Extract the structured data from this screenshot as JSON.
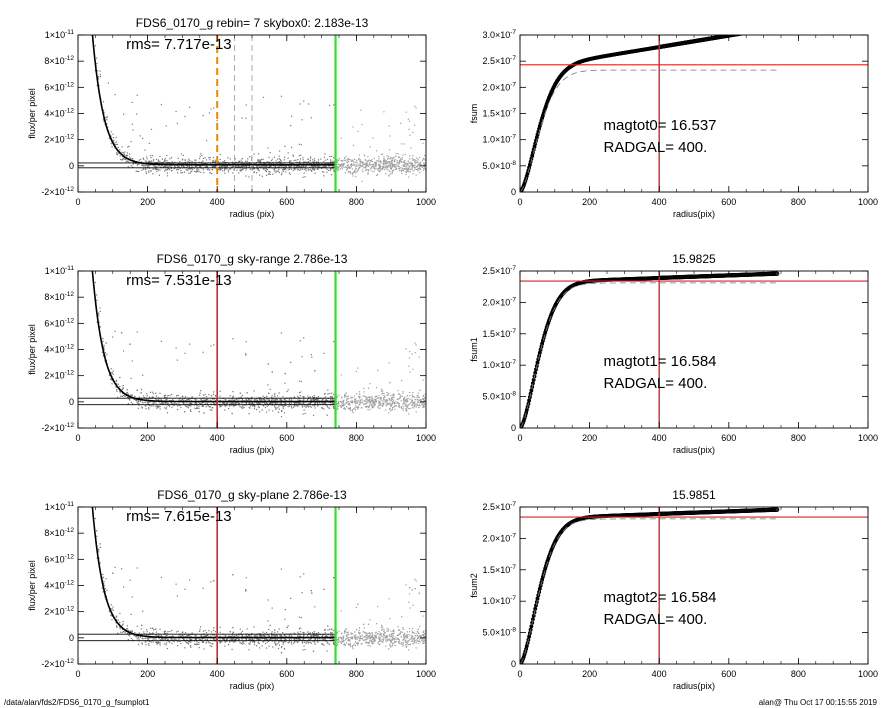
{
  "footer": {
    "left": "/data/alan/fds2/FDS6_0170_g_fsumplot1",
    "right": "alan@  Thu Oct 17 00:15:55 2019"
  },
  "colors": {
    "red": "#dd2222",
    "green": "#33dd33",
    "orange": "#ee8800",
    "points": "#a0a0a0",
    "profile": "#000000"
  },
  "chart_data": [
    {
      "type": "scatter",
      "title": "FDS6_0170_g rebin= 7    skybox0:  2.183e-13",
      "annotation": "rms= 7.717e-13",
      "xlabel": "radius (pix)",
      "ylabel": "flux/per pixel",
      "xlim": [
        0,
        1000
      ],
      "ylim": [
        -2e-12,
        1e-11
      ],
      "xticks": [
        {
          "v": 0,
          "label": "0"
        },
        {
          "v": 200,
          "label": "200"
        },
        {
          "v": 400,
          "label": "400"
        },
        {
          "v": 600,
          "label": "600"
        },
        {
          "v": 800,
          "label": "800"
        },
        {
          "v": 1000,
          "label": "1000"
        }
      ],
      "yticks": [
        {
          "v": -2e-12,
          "base": "-2×10",
          "exp": "-12"
        },
        {
          "v": 0,
          "base": "0",
          "exp": ""
        },
        {
          "v": 2e-12,
          "base": "2×10",
          "exp": "-12"
        },
        {
          "v": 4e-12,
          "base": "4×10",
          "exp": "-12"
        },
        {
          "v": 6e-12,
          "base": "6×10",
          "exp": "-12"
        },
        {
          "v": 8e-12,
          "base": "8×10",
          "exp": "-12"
        },
        {
          "v": 1e-11,
          "base": "1×10",
          "exp": "-11"
        }
      ],
      "profile": {
        "amp": 3.5e-11,
        "scale": 33,
        "offset": 8e-14
      },
      "hlines": [
        2.2e-13,
        -1.5e-13
      ],
      "vlines": [
        {
          "x": 400,
          "color": "#ee8800",
          "style": "dashed-thick"
        },
        {
          "x": 450,
          "color": "#999999",
          "style": "dashed"
        },
        {
          "x": 500,
          "color": "#999999",
          "style": "dashed"
        },
        {
          "x": 740,
          "color": "#33dd33",
          "style": "solid"
        }
      ]
    },
    {
      "type": "line",
      "title": "",
      "xlabel": "radius(pix)",
      "ylabel": "fsum",
      "xlim": [
        0,
        1000
      ],
      "ylim": [
        0,
        3e-07
      ],
      "xticks": [
        {
          "v": 0,
          "label": "0"
        },
        {
          "v": 200,
          "label": "200"
        },
        {
          "v": 400,
          "label": "400"
        },
        {
          "v": 600,
          "label": "600"
        },
        {
          "v": 800,
          "label": "800"
        },
        {
          "v": 1000,
          "label": "1000"
        }
      ],
      "yticks": [
        {
          "v": 0,
          "base": "0",
          "exp": ""
        },
        {
          "v": 5e-08,
          "base": "5.0×10",
          "exp": "-8"
        },
        {
          "v": 1e-07,
          "base": "1.0×10",
          "exp": "-7"
        },
        {
          "v": 1.5e-07,
          "base": "1.5×10",
          "exp": "-7"
        },
        {
          "v": 2e-07,
          "base": "2.0×10",
          "exp": "-7"
        },
        {
          "v": 2.5e-07,
          "base": "2.5×10",
          "exp": "-7"
        },
        {
          "v": 3e-07,
          "base": "3.0×10",
          "exp": "-7"
        }
      ],
      "curve": {
        "plateau": 2.33e-07,
        "scale": 70,
        "slope": 1.1e-10,
        "xmax": 740
      },
      "hline": 2.43e-07,
      "vline": 400,
      "annot1": "magtot0=  16.537",
      "annot2": "RADGAL=    400."
    },
    {
      "type": "scatter",
      "title": "FDS6_0170_g sky-range  2.786e-13",
      "annotation": "rms= 7.531e-13",
      "xlabel": "radius (pix)",
      "ylabel": "flux/per pixel",
      "xlim": [
        0,
        1000
      ],
      "ylim": [
        -2e-12,
        1e-11
      ],
      "xticks": [
        {
          "v": 0,
          "label": "0"
        },
        {
          "v": 200,
          "label": "200"
        },
        {
          "v": 400,
          "label": "400"
        },
        {
          "v": 600,
          "label": "600"
        },
        {
          "v": 800,
          "label": "800"
        },
        {
          "v": 1000,
          "label": "1000"
        }
      ],
      "yticks": [
        {
          "v": -2e-12,
          "base": "-2×10",
          "exp": "-12"
        },
        {
          "v": 0,
          "base": "0",
          "exp": ""
        },
        {
          "v": 2e-12,
          "base": "2×10",
          "exp": "-12"
        },
        {
          "v": 4e-12,
          "base": "4×10",
          "exp": "-12"
        },
        {
          "v": 6e-12,
          "base": "6×10",
          "exp": "-12"
        },
        {
          "v": 8e-12,
          "base": "8×10",
          "exp": "-12"
        },
        {
          "v": 1e-11,
          "base": "1×10",
          "exp": "-11"
        }
      ],
      "profile": {
        "amp": 3.5e-11,
        "scale": 33,
        "offset": 2e-14
      },
      "hlines": [
        2.8e-13,
        -2.2e-13
      ],
      "vlines": [
        {
          "x": 400,
          "color": "#dd2222",
          "style": "solid"
        },
        {
          "x": 740,
          "color": "#33dd33",
          "style": "solid"
        }
      ]
    },
    {
      "type": "line",
      "title": "15.9825",
      "xlabel": "radius(pix)",
      "ylabel": "fsum1",
      "xlim": [
        0,
        1000
      ],
      "ylim": [
        0,
        2.5e-07
      ],
      "xticks": [
        {
          "v": 0,
          "label": "0"
        },
        {
          "v": 200,
          "label": "200"
        },
        {
          "v": 400,
          "label": "400"
        },
        {
          "v": 600,
          "label": "600"
        },
        {
          "v": 800,
          "label": "800"
        },
        {
          "v": 1000,
          "label": "1000"
        }
      ],
      "yticks": [
        {
          "v": 0,
          "base": "0",
          "exp": ""
        },
        {
          "v": 5e-08,
          "base": "5.0×10",
          "exp": "-8"
        },
        {
          "v": 1e-07,
          "base": "1.0×10",
          "exp": "-7"
        },
        {
          "v": 1.5e-07,
          "base": "1.5×10",
          "exp": "-7"
        },
        {
          "v": 2e-07,
          "base": "2.0×10",
          "exp": "-7"
        },
        {
          "v": 2.5e-07,
          "base": "2.5×10",
          "exp": "-7"
        }
      ],
      "curve": {
        "plateau": 2.31e-07,
        "scale": 70,
        "slope": 2e-11,
        "xmax": 740
      },
      "hline": 2.34e-07,
      "vline": 400,
      "annot1": "magtot1=  16.584",
      "annot2": "RADGAL=    400."
    },
    {
      "type": "scatter",
      "title": "FDS6_0170_g sky-plane  2.786e-13",
      "annotation": "rms= 7.615e-13",
      "xlabel": "radius (pix)",
      "ylabel": "flux/per pixel",
      "xlim": [
        0,
        1000
      ],
      "ylim": [
        -2e-12,
        1e-11
      ],
      "xticks": [
        {
          "v": 0,
          "label": "0"
        },
        {
          "v": 200,
          "label": "200"
        },
        {
          "v": 400,
          "label": "400"
        },
        {
          "v": 600,
          "label": "600"
        },
        {
          "v": 800,
          "label": "800"
        },
        {
          "v": 1000,
          "label": "1000"
        }
      ],
      "yticks": [
        {
          "v": -2e-12,
          "base": "-2×10",
          "exp": "-12"
        },
        {
          "v": 0,
          "base": "0",
          "exp": ""
        },
        {
          "v": 2e-12,
          "base": "2×10",
          "exp": "-12"
        },
        {
          "v": 4e-12,
          "base": "4×10",
          "exp": "-12"
        },
        {
          "v": 6e-12,
          "base": "6×10",
          "exp": "-12"
        },
        {
          "v": 8e-12,
          "base": "8×10",
          "exp": "-12"
        },
        {
          "v": 1e-11,
          "base": "1×10",
          "exp": "-11"
        }
      ],
      "profile": {
        "amp": 3.5e-11,
        "scale": 33,
        "offset": 2e-14
      },
      "hlines": [
        2.8e-13,
        -2.2e-13
      ],
      "vlines": [
        {
          "x": 400,
          "color": "#dd2222",
          "style": "solid"
        },
        {
          "x": 740,
          "color": "#33dd33",
          "style": "solid"
        }
      ]
    },
    {
      "type": "line",
      "title": "15.9851",
      "xlabel": "radius(pix)",
      "ylabel": "fsum2",
      "xlim": [
        0,
        1000
      ],
      "ylim": [
        0,
        2.5e-07
      ],
      "xticks": [
        {
          "v": 0,
          "label": "0"
        },
        {
          "v": 200,
          "label": "200"
        },
        {
          "v": 400,
          "label": "400"
        },
        {
          "v": 600,
          "label": "600"
        },
        {
          "v": 800,
          "label": "800"
        },
        {
          "v": 1000,
          "label": "1000"
        }
      ],
      "yticks": [
        {
          "v": 0,
          "base": "0",
          "exp": ""
        },
        {
          "v": 5e-08,
          "base": "5.0×10",
          "exp": "-8"
        },
        {
          "v": 1e-07,
          "base": "1.0×10",
          "exp": "-7"
        },
        {
          "v": 1.5e-07,
          "base": "1.5×10",
          "exp": "-7"
        },
        {
          "v": 2e-07,
          "base": "2.0×10",
          "exp": "-7"
        },
        {
          "v": 2.5e-07,
          "base": "2.5×10",
          "exp": "-7"
        }
      ],
      "curve": {
        "plateau": 2.31e-07,
        "scale": 70,
        "slope": 2e-11,
        "xmax": 740
      },
      "hline": 2.34e-07,
      "vline": 400,
      "annot1": "magtot2=  16.584",
      "annot2": "RADGAL=    400."
    }
  ]
}
